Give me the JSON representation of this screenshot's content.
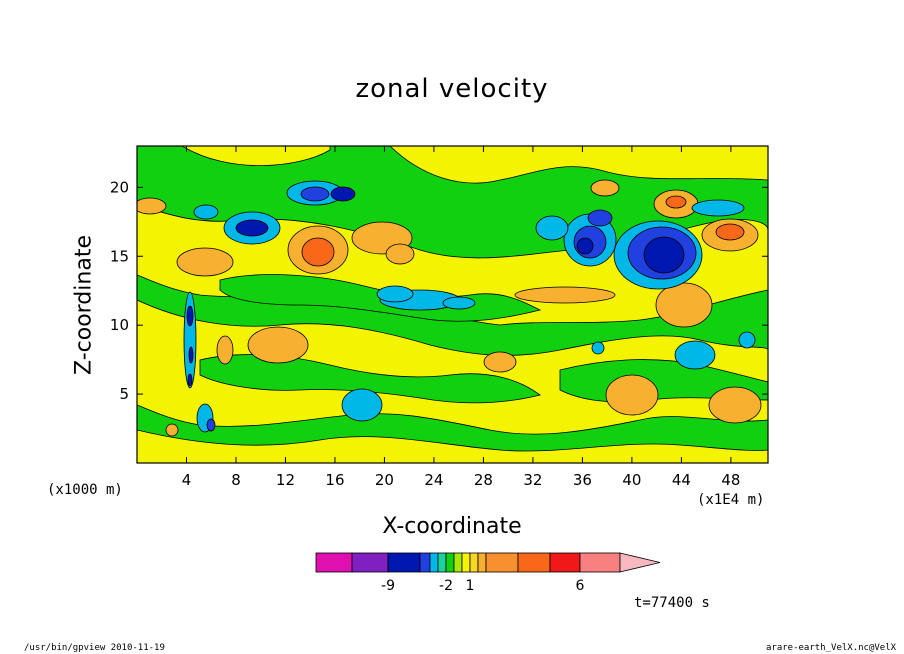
{
  "title": "zonal velocity",
  "footer": {
    "left": "/usr/bin/gpview   2010-11-19",
    "right": "arare-earth_VelX.nc@VelX"
  },
  "time_label": "t=77400 s",
  "chart_data": {
    "type": "heatmap",
    "title": "zonal velocity",
    "xlabel": "X-coordinate",
    "ylabel": "Z-coordinate",
    "x_unit_left": "(x1000 m)",
    "x_unit_right": "(x1E4 m)",
    "xlim": [
      0,
      51
    ],
    "ylim": [
      0,
      23
    ],
    "x_ticks": [
      4,
      8,
      12,
      16,
      20,
      24,
      28,
      32,
      36,
      40,
      44,
      48
    ],
    "y_ticks": [
      5,
      10,
      15,
      20
    ],
    "colorbar": {
      "colors": [
        "#e010b0",
        "#8020c0",
        "#0018b0",
        "#2040e0",
        "#00b8e8",
        "#18d4a0",
        "#10d010",
        "#a8e800",
        "#f4f400",
        "#f8d820",
        "#f8b030",
        "#f89030",
        "#f86818",
        "#f01818",
        "#f88080",
        "#f8b8c0"
      ],
      "labels": [
        {
          "value": "-9",
          "color_index": 1
        },
        {
          "value": "-2",
          "color_index": 5
        },
        {
          "value": "1",
          "color_index": 8
        },
        {
          "value": "6",
          "color_index": 13
        }
      ],
      "extend": "right"
    },
    "features": [
      {
        "x": 15,
        "z": 15,
        "value": 5,
        "kind": "positive-core"
      },
      {
        "x": 20,
        "z": 16.5,
        "value": 4,
        "kind": "positive-core"
      },
      {
        "x": 45,
        "z": 15,
        "value": -8,
        "kind": "negative-core"
      },
      {
        "x": 38,
        "z": 16,
        "value": -6,
        "kind": "negative-core"
      },
      {
        "x": 9,
        "z": 17,
        "value": -4,
        "kind": "negative-core"
      },
      {
        "x": 4.5,
        "z": 11,
        "value": -9,
        "kind": "negative-core"
      },
      {
        "x": 48,
        "z": 17,
        "value": 5,
        "kind": "positive-core"
      },
      {
        "x": 44,
        "z": 19,
        "value": 4,
        "kind": "positive-core"
      },
      {
        "x": 24,
        "z": 11.5,
        "value": -2,
        "kind": "negative-band"
      },
      {
        "x": 44,
        "z": 8,
        "value": -2,
        "kind": "negative-core"
      },
      {
        "x": 18,
        "z": 4,
        "value": -2,
        "kind": "negative-core"
      },
      {
        "x": 12,
        "z": 8.5,
        "value": 3,
        "kind": "positive-core"
      },
      {
        "x": 41,
        "z": 5,
        "value": 3,
        "kind": "positive-core"
      },
      {
        "x": 48,
        "z": 4,
        "value": 3,
        "kind": "positive-core"
      },
      {
        "x": 44,
        "z": 11.5,
        "value": 3,
        "kind": "positive-core"
      }
    ]
  }
}
